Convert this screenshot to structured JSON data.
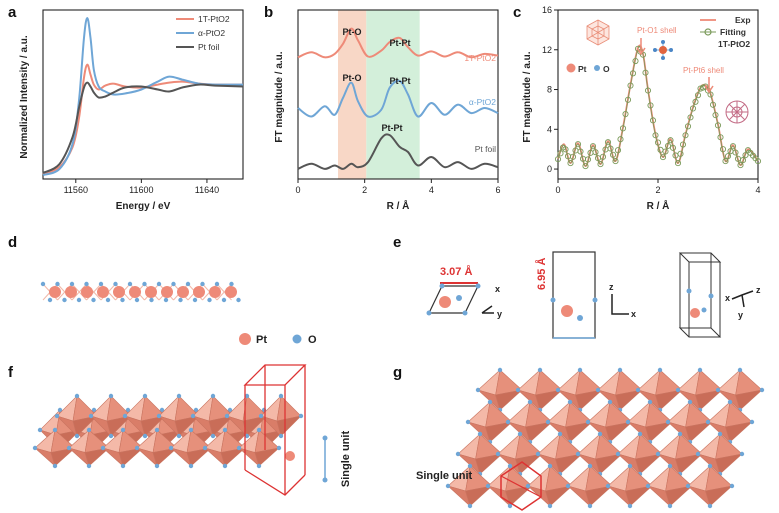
{
  "panels": {
    "a": "a",
    "b": "b",
    "c": "c",
    "d": "d",
    "e": "e",
    "f": "f",
    "g": "g"
  },
  "chart_data": [
    {
      "id": "a",
      "type": "line",
      "xlabel": "Energy / eV",
      "ylabel": "Normalized Intensity / a.u.",
      "xlim": [
        11540,
        11662
      ],
      "ylim": [
        0,
        1.7
      ],
      "xticks": [
        11560,
        11600,
        11640
      ],
      "legend": [
        "1T-PtO2",
        "α-PtO2",
        "Pt foil"
      ],
      "series": [
        {
          "name": "1T-PtO2",
          "color": "#ee8a78",
          "x": [
            11540,
            11550,
            11558,
            11562,
            11565,
            11567,
            11569,
            11571,
            11574,
            11578,
            11583,
            11590,
            11600,
            11610,
            11617,
            11625,
            11635,
            11645,
            11662
          ],
          "y": [
            0.05,
            0.12,
            0.32,
            0.62,
            1.02,
            1.15,
            1.05,
            0.95,
            0.9,
            0.94,
            0.96,
            0.93,
            0.92,
            0.95,
            0.97,
            0.98,
            0.96,
            0.95,
            0.95
          ]
        },
        {
          "name": "α-PtO2",
          "color": "#6fa6d6",
          "x": [
            11540,
            11550,
            11558,
            11562,
            11565,
            11567,
            11569,
            11571,
            11574,
            11578,
            11583,
            11590,
            11600,
            11610,
            11617,
            11625,
            11635,
            11645,
            11662
          ],
          "y": [
            0.04,
            0.1,
            0.35,
            0.8,
            1.42,
            1.62,
            1.42,
            1.1,
            0.93,
            0.88,
            0.85,
            0.86,
            0.9,
            0.98,
            1.03,
            1.0,
            0.96,
            0.95,
            0.95
          ]
        },
        {
          "name": "Pt foil",
          "color": "#555555",
          "x": [
            11540,
            11550,
            11558,
            11562,
            11565,
            11567,
            11569,
            11571,
            11574,
            11578,
            11583,
            11590,
            11600,
            11610,
            11617,
            11625,
            11635,
            11645,
            11662
          ],
          "y": [
            0.06,
            0.15,
            0.42,
            0.72,
            0.92,
            0.97,
            0.93,
            0.87,
            0.82,
            0.83,
            0.87,
            0.92,
            0.93,
            0.9,
            0.88,
            0.92,
            0.95,
            0.94,
            0.93
          ]
        }
      ]
    },
    {
      "id": "b",
      "type": "line",
      "xlabel": "R / Å",
      "ylabel": "FT magnitude / a.u.",
      "xlim": [
        0,
        6
      ],
      "ylim": [
        0,
        10
      ],
      "xticks": [
        0,
        2,
        4,
        6
      ],
      "bands": [
        {
          "range": [
            1.2,
            2.05
          ],
          "color": "#f8d7c6"
        },
        {
          "range": [
            2.05,
            3.65
          ],
          "color": "#d3efda"
        }
      ],
      "annotations": [
        "Pt-O",
        "Pt-Pt",
        "Pt-O",
        "Pt-Pt",
        "Pt-Pt"
      ],
      "curve_labels": [
        "1T-PtO2",
        "α-PtO2",
        "Pt foil"
      ],
      "series": [
        {
          "name": "1T-PtO2",
          "color": "#ee8a78",
          "offset": 7.1,
          "x": [
            0,
            0.4,
            0.8,
            1.1,
            1.35,
            1.6,
            1.8,
            2.1,
            2.5,
            2.75,
            3.05,
            3.3,
            3.6,
            4.0,
            4.4,
            4.8,
            5.2,
            5.6,
            6.0
          ],
          "y": [
            0.1,
            0.4,
            0.1,
            0.3,
            0.9,
            1.8,
            1.1,
            0.15,
            0.5,
            1.0,
            1.25,
            0.7,
            0.2,
            0.45,
            0.15,
            0.4,
            0.1,
            0.3,
            0.2
          ]
        },
        {
          "name": "α-PtO2",
          "color": "#6fa6d6",
          "offset": 3.6,
          "x": [
            0,
            0.4,
            0.8,
            1.1,
            1.35,
            1.6,
            1.8,
            2.1,
            2.5,
            2.75,
            3.05,
            3.3,
            3.6,
            4.0,
            4.4,
            4.8,
            5.2,
            5.6,
            6.0
          ],
          "y": [
            0.6,
            0.1,
            0.7,
            0.2,
            1.2,
            2.1,
            1.0,
            0.1,
            0.5,
            1.8,
            2.2,
            1.4,
            0.1,
            0.9,
            0.2,
            0.8,
            0.3,
            0.6,
            0.3
          ]
        },
        {
          "name": "Pt foil",
          "color": "#555555",
          "offset": 0.4,
          "x": [
            0,
            0.4,
            0.8,
            1.1,
            1.35,
            1.6,
            1.8,
            2.1,
            2.5,
            2.75,
            3.05,
            3.3,
            3.6,
            4.0,
            4.4,
            4.8,
            5.2,
            5.6,
            6.0
          ],
          "y": [
            0.2,
            0.5,
            0.2,
            0.4,
            0.2,
            0.5,
            0.3,
            0.6,
            2.0,
            2.2,
            1.5,
            1.2,
            0.4,
            0.9,
            0.3,
            0.6,
            0.2,
            0.5,
            0.3
          ]
        }
      ]
    },
    {
      "id": "c",
      "type": "line",
      "xlabel": "R / Å",
      "ylabel": "FT magnitude / a.u.",
      "xlim": [
        0,
        4
      ],
      "ylim": [
        -1,
        16
      ],
      "xticks": [
        0,
        2,
        4
      ],
      "yticks": [
        0,
        4,
        8,
        12,
        16
      ],
      "legend": [
        "Exp",
        "Fitting",
        "1T-PtO2"
      ],
      "annotations": [
        "Pt-O1 shell",
        "Pt-Pt6 shell",
        "Pt",
        "O"
      ],
      "series": [
        {
          "name": "Exp",
          "color": "#ee8a78",
          "x": [
            0,
            0.12,
            0.25,
            0.4,
            0.55,
            0.7,
            0.85,
            1.0,
            1.15,
            1.3,
            1.45,
            1.6,
            1.7,
            1.8,
            1.95,
            2.1,
            2.25,
            2.4,
            2.55,
            2.7,
            2.85,
            2.95,
            3.05,
            3.2,
            3.35,
            3.5,
            3.65,
            3.8,
            4.0
          ],
          "y": [
            1.0,
            2.5,
            0.6,
            2.6,
            0.3,
            2.4,
            0.5,
            2.8,
            0.8,
            4.2,
            8.5,
            12.2,
            11.6,
            8.0,
            3.5,
            1.2,
            3.0,
            0.6,
            3.5,
            6.2,
            8.2,
            8.4,
            7.6,
            4.5,
            0.8,
            2.4,
            0.4,
            2.0,
            0.8
          ]
        },
        {
          "name": "Fitting",
          "color": "#7a9a5a",
          "marker": "circle",
          "x": [
            0,
            0.12,
            0.25,
            0.4,
            0.55,
            0.7,
            0.85,
            1.0,
            1.15,
            1.3,
            1.45,
            1.6,
            1.7,
            1.8,
            1.95,
            2.1,
            2.25,
            2.4,
            2.55,
            2.7,
            2.85,
            2.95,
            3.05,
            3.2,
            3.35,
            3.5,
            3.65,
            3.8,
            4.0
          ],
          "y": [
            1.0,
            2.4,
            0.6,
            2.5,
            0.3,
            2.3,
            0.5,
            2.7,
            0.8,
            4.1,
            8.4,
            12.1,
            11.5,
            7.9,
            3.4,
            1.2,
            2.9,
            0.6,
            3.4,
            6.1,
            8.1,
            8.3,
            7.5,
            4.4,
            0.8,
            2.3,
            0.4,
            1.9,
            0.8
          ]
        }
      ]
    }
  ],
  "labels": {
    "pt": "Pt",
    "o": "O",
    "a_len": "3.07 Å",
    "c_len": "6.95 Å",
    "axis_x": "x",
    "axis_y": "y",
    "axis_z": "z",
    "single_unit_f": "Single unit",
    "single_unit_g": "Single  unit"
  },
  "colors": {
    "pt": "#ee8a78",
    "o": "#6fa6d6",
    "octa": "#e99a85",
    "red": "#dd3333"
  }
}
